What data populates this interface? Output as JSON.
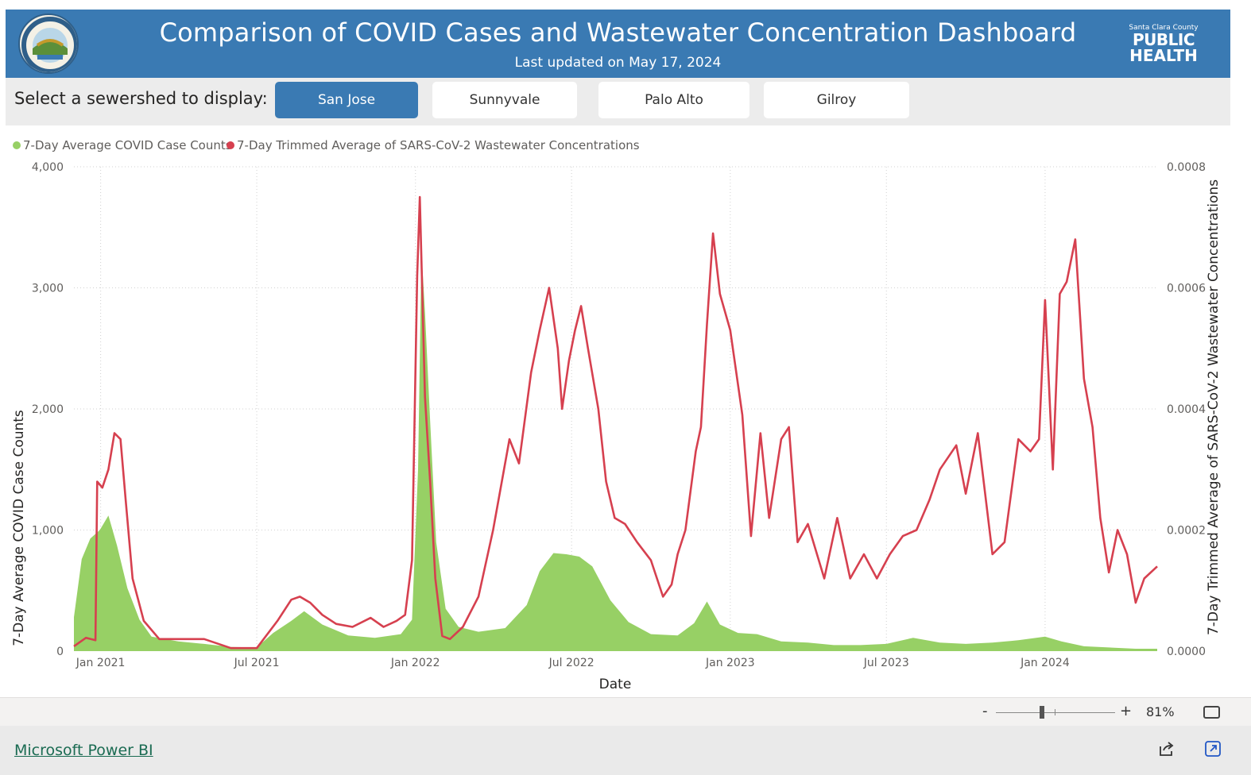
{
  "header": {
    "title": "Comparison of COVID Cases and Wastewater Concentration Dashboard",
    "subtitle": "Last updated on May 17, 2024",
    "seal_icon": "county-seal-icon",
    "logo": {
      "county": "Santa Clara County",
      "line1": "PUBLIC",
      "line2": "HEALTH"
    },
    "background_color": "#3a7ab3"
  },
  "selector": {
    "label": "Select a sewershed to display:",
    "options": [
      "San Jose",
      "Sunnyvale",
      "Palo Alto",
      "Gilroy"
    ],
    "selected": "San Jose"
  },
  "chart_data": {
    "type": "line",
    "title": "",
    "xlabel": "Date",
    "ylabel": "7-Day Average COVID Case Counts",
    "y2label": "7-Day Trimmed Average of SARS-CoV-2 Wastewater Concentrations",
    "ylim": [
      0,
      4000
    ],
    "y2lim": [
      0,
      0.0008
    ],
    "yticks": [
      "0",
      "1,000",
      "2,000",
      "3,000",
      "4,000"
    ],
    "y2ticks": [
      "0.0000",
      "0.0002",
      "0.0004",
      "0.0006",
      "0.0008"
    ],
    "xticks": [
      "Jan 2021",
      "Jul 2021",
      "Jan 2022",
      "Jul 2022",
      "Jan 2023",
      "Jul 2023",
      "Jan 2024"
    ],
    "grid": true,
    "legend": "top-left",
    "series": [
      {
        "name": "7-Day Average COVID Case Counts",
        "type": "area",
        "axis": "left",
        "color": "#97d065",
        "x": [
          "2020-12-01",
          "2020-12-10",
          "2020-12-20",
          "2020-12-31",
          "2021-01-10",
          "2021-01-20",
          "2021-02-01",
          "2021-02-15",
          "2021-03-01",
          "2021-04-01",
          "2021-05-01",
          "2021-06-01",
          "2021-07-01",
          "2021-07-20",
          "2021-08-10",
          "2021-08-25",
          "2021-09-15",
          "2021-10-15",
          "2021-11-15",
          "2021-12-15",
          "2021-12-28",
          "2022-01-04",
          "2022-01-08",
          "2022-01-12",
          "2022-01-18",
          "2022-01-25",
          "2022-02-05",
          "2022-02-20",
          "2022-03-15",
          "2022-04-15",
          "2022-05-10",
          "2022-05-25",
          "2022-06-10",
          "2022-06-25",
          "2022-07-10",
          "2022-07-25",
          "2022-08-15",
          "2022-09-05",
          "2022-10-01",
          "2022-11-01",
          "2022-11-20",
          "2022-12-05",
          "2022-12-20",
          "2023-01-10",
          "2023-02-01",
          "2023-03-01",
          "2023-04-01",
          "2023-05-01",
          "2023-06-01",
          "2023-07-01",
          "2023-08-01",
          "2023-09-01",
          "2023-10-01",
          "2023-11-01",
          "2023-12-01",
          "2024-01-01",
          "2024-01-20",
          "2024-02-15",
          "2024-03-15",
          "2024-04-15",
          "2024-05-10"
        ],
        "values": [
          280,
          760,
          930,
          1000,
          1120,
          870,
          520,
          260,
          120,
          80,
          60,
          35,
          30,
          150,
          250,
          330,
          220,
          130,
          110,
          140,
          260,
          1500,
          3300,
          2800,
          1900,
          900,
          350,
          200,
          160,
          190,
          380,
          660,
          810,
          800,
          780,
          700,
          420,
          240,
          140,
          130,
          230,
          410,
          220,
          150,
          140,
          80,
          70,
          50,
          50,
          60,
          110,
          70,
          60,
          70,
          90,
          120,
          80,
          40,
          30,
          20,
          20
        ]
      },
      {
        "name": "7-Day Trimmed Average of SARS-CoV-2 Wastewater Concentrations",
        "type": "line",
        "axis": "right",
        "color": "#d6404f",
        "x": [
          "2020-12-01",
          "2020-12-15",
          "2020-12-26",
          "2020-12-28",
          "2021-01-03",
          "2021-01-10",
          "2021-01-17",
          "2021-01-24",
          "2021-01-30",
          "2021-02-07",
          "2021-02-20",
          "2021-03-10",
          "2021-04-01",
          "2021-05-01",
          "2021-06-01",
          "2021-07-01",
          "2021-07-25",
          "2021-08-10",
          "2021-08-20",
          "2021-09-01",
          "2021-09-15",
          "2021-10-01",
          "2021-10-20",
          "2021-11-10",
          "2021-11-25",
          "2021-12-10",
          "2021-12-20",
          "2021-12-28",
          "2022-01-03",
          "2022-01-06",
          "2022-01-12",
          "2022-01-18",
          "2022-01-24",
          "2022-02-01",
          "2022-02-10",
          "2022-02-25",
          "2022-03-15",
          "2022-04-01",
          "2022-04-20",
          "2022-05-01",
          "2022-05-15",
          "2022-05-25",
          "2022-06-05",
          "2022-06-15",
          "2022-06-20",
          "2022-06-28",
          "2022-07-05",
          "2022-07-12",
          "2022-07-20",
          "2022-08-01",
          "2022-08-10",
          "2022-08-20",
          "2022-09-01",
          "2022-09-15",
          "2022-10-01",
          "2022-10-15",
          "2022-10-25",
          "2022-11-01",
          "2022-11-10",
          "2022-11-22",
          "2022-11-28",
          "2022-12-05",
          "2022-12-12",
          "2022-12-20",
          "2023-01-01",
          "2023-01-15",
          "2023-01-25",
          "2023-02-05",
          "2023-02-15",
          "2023-03-01",
          "2023-03-10",
          "2023-03-20",
          "2023-04-01",
          "2023-04-20",
          "2023-05-05",
          "2023-05-20",
          "2023-06-05",
          "2023-06-20",
          "2023-07-05",
          "2023-07-20",
          "2023-08-05",
          "2023-08-20",
          "2023-09-01",
          "2023-09-20",
          "2023-10-01",
          "2023-10-15",
          "2023-11-01",
          "2023-11-15",
          "2023-12-01",
          "2023-12-15",
          "2023-12-25",
          "2024-01-01",
          "2024-01-10",
          "2024-01-18",
          "2024-01-26",
          "2024-02-05",
          "2024-02-15",
          "2024-02-25",
          "2024-03-05",
          "2024-03-15",
          "2024-03-25",
          "2024-04-05",
          "2024-04-15",
          "2024-04-25",
          "2024-05-10"
        ],
        "values": [
          8e-06,
          2.2e-05,
          1.8e-05,
          0.00028,
          0.00027,
          0.0003,
          0.00036,
          0.00035,
          0.00025,
          0.00012,
          5e-05,
          2e-05,
          2e-05,
          2e-05,
          5e-06,
          5e-06,
          5e-05,
          8.5e-05,
          9e-05,
          8e-05,
          6e-05,
          4.5e-05,
          4e-05,
          5.5e-05,
          4e-05,
          5e-05,
          6e-05,
          0.00015,
          0.00062,
          0.00075,
          0.00042,
          0.00028,
          0.00012,
          2.5e-05,
          2e-05,
          4e-05,
          9e-05,
          0.0002,
          0.00035,
          0.00031,
          0.00046,
          0.00053,
          0.0006,
          0.0005,
          0.0004,
          0.00048,
          0.00053,
          0.00057,
          0.0005,
          0.0004,
          0.00028,
          0.00022,
          0.00021,
          0.00018,
          0.00015,
          9e-05,
          0.00011,
          0.00016,
          0.0002,
          0.00033,
          0.00037,
          0.00054,
          0.00069,
          0.00059,
          0.00053,
          0.00039,
          0.00019,
          0.00036,
          0.00022,
          0.00035,
          0.00037,
          0.00018,
          0.00021,
          0.00012,
          0.00022,
          0.00012,
          0.00016,
          0.00012,
          0.00016,
          0.00019,
          0.0002,
          0.00025,
          0.0003,
          0.00034,
          0.00026,
          0.00036,
          0.00016,
          0.00018,
          0.00035,
          0.00033,
          0.00035,
          0.00058,
          0.0003,
          0.00059,
          0.00061,
          0.00068,
          0.00045,
          0.00037,
          0.00022,
          0.00013,
          0.0002,
          0.00016,
          8e-05,
          0.00012,
          0.00014
        ]
      }
    ]
  },
  "zoom": {
    "minus": "-",
    "plus": "+",
    "value": "81%",
    "level": 0.81
  },
  "footer": {
    "link_text": "Microsoft Power BI",
    "share_icon": "share-icon",
    "popout_icon": "popout-icon",
    "fit_icon": "fit-to-page-icon"
  }
}
